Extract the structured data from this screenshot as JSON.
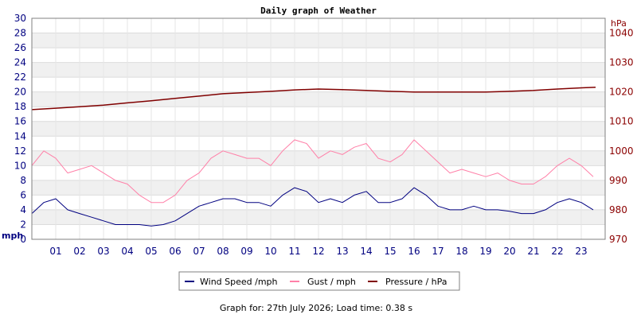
{
  "chart_data": {
    "type": "line",
    "title": "Daily graph of Weather",
    "x_tick_labels": [
      "01",
      "02",
      "03",
      "04",
      "05",
      "06",
      "07",
      "08",
      "09",
      "10",
      "11",
      "12",
      "13",
      "14",
      "15",
      "16",
      "17",
      "18",
      "19",
      "20",
      "21",
      "22",
      "23"
    ],
    "x_range_hours": [
      0,
      24
    ],
    "y_left": {
      "label": "mph",
      "range": [
        0,
        30
      ],
      "ticks": [
        0,
        2,
        4,
        6,
        8,
        10,
        12,
        14,
        16,
        18,
        20,
        22,
        24,
        26,
        28,
        30
      ]
    },
    "y_right": {
      "label": "hPa",
      "range": [
        970,
        1045
      ],
      "ticks": [
        970,
        980,
        990,
        1000,
        1010,
        1020,
        1030,
        1040
      ]
    },
    "grid": true,
    "legend_position": "bottom",
    "series": [
      {
        "name": "Wind Speed /mph",
        "axis": "left",
        "color": "#000080",
        "x": [
          0,
          0.5,
          1,
          1.5,
          2,
          2.5,
          3,
          3.5,
          4,
          4.5,
          5,
          5.5,
          6,
          6.5,
          7,
          7.5,
          8,
          8.5,
          9,
          9.5,
          10,
          10.5,
          11,
          11.5,
          12,
          12.5,
          13,
          13.5,
          14,
          14.5,
          15,
          15.5,
          16,
          16.5,
          17,
          17.5,
          18,
          18.5,
          19,
          19.5,
          20,
          20.5,
          21,
          21.5,
          22,
          22.5,
          23,
          23.5
        ],
        "values": [
          3.5,
          5,
          5.5,
          4,
          3.5,
          3,
          2.5,
          2,
          2,
          2,
          1.8,
          2,
          2.5,
          3.5,
          4.5,
          5,
          5.5,
          5.5,
          5,
          5,
          4.5,
          6,
          7,
          6.5,
          5,
          5.5,
          5,
          6,
          6.5,
          5,
          5,
          5.5,
          7,
          6,
          4.5,
          4,
          4,
          4.5,
          4,
          4,
          3.8,
          3.5,
          3.5,
          4,
          5,
          5.5,
          5,
          4
        ]
      },
      {
        "name": "Gust / mph",
        "axis": "left",
        "color": "#ff80a8",
        "x": [
          0,
          0.5,
          1,
          1.5,
          2,
          2.5,
          3,
          3.5,
          4,
          4.5,
          5,
          5.5,
          6,
          6.5,
          7,
          7.5,
          8,
          8.5,
          9,
          9.5,
          10,
          10.5,
          11,
          11.5,
          12,
          12.5,
          13,
          13.5,
          14,
          14.5,
          15,
          15.5,
          16,
          16.5,
          17,
          17.5,
          18,
          18.5,
          19,
          19.5,
          20,
          20.5,
          21,
          21.5,
          22,
          22.5,
          23,
          23.5
        ],
        "values": [
          10,
          12,
          11,
          9,
          9.5,
          10,
          9,
          8,
          7.5,
          6,
          5,
          5,
          6,
          8,
          9,
          11,
          12,
          11.5,
          11,
          11,
          10,
          12,
          13.5,
          13,
          11,
          12,
          11.5,
          12.5,
          13,
          11,
          10.5,
          11.5,
          13.5,
          12,
          10.5,
          9,
          9.5,
          9,
          8.5,
          9,
          8,
          7.5,
          7.5,
          8.5,
          10,
          11,
          10,
          8.5
        ]
      },
      {
        "name": "Pressure / hPa",
        "axis": "right",
        "color": "#800000",
        "x": [
          0,
          1,
          2,
          3,
          4,
          5,
          6,
          7,
          8,
          9,
          10,
          11,
          12,
          13,
          14,
          15,
          16,
          17,
          18,
          19,
          20,
          21,
          22,
          23,
          23.6
        ],
        "values": [
          1014,
          1014.5,
          1015,
          1015.5,
          1016.3,
          1017,
          1017.8,
          1018.6,
          1019.4,
          1019.8,
          1020.2,
          1020.7,
          1021,
          1020.8,
          1020.5,
          1020.2,
          1020,
          1020,
          1020,
          1020,
          1020.2,
          1020.5,
          1021,
          1021.4,
          1021.6
        ]
      }
    ],
    "footer": "Graph for: 27th July 2026; Load time: 0.38 s"
  }
}
